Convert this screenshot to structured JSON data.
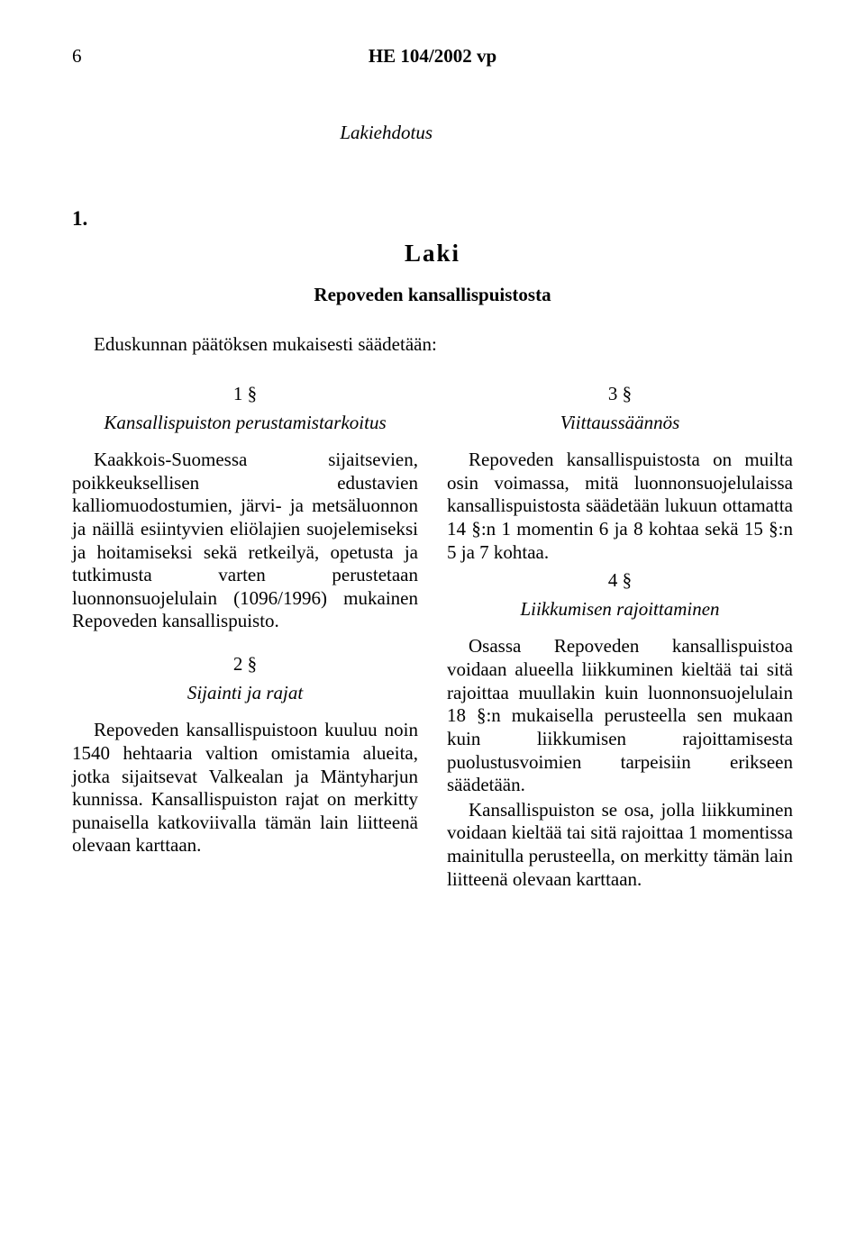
{
  "header": {
    "page_number": "6",
    "doc_id": "HE 104/2002 vp"
  },
  "lakiehdotus": "Lakiehdotus",
  "number_one": "1.",
  "laki_heading": "Laki",
  "subtitle": "Repoveden kansallispuistosta",
  "intro": "Eduskunnan päätöksen mukaisesti säädetään:",
  "left": {
    "s1_num": "1 §",
    "s1_title": "Kansallispuiston perustamistarkoitus",
    "s1_p1": "Kaakkois-Suomessa sijaitsevien, poikkeuksellisen edustavien kalliomuodostumien, järvi- ja metsäluonnon ja näillä esiintyvien eliölajien suojelemiseksi ja hoitamiseksi sekä retkeilyä, opetusta ja tutkimusta varten perustetaan luonnonsuojelulain (1096/1996) mukainen Repoveden kansallispuisto.",
    "s2_num": "2 §",
    "s2_title": "Sijainti ja rajat",
    "s2_p1": "Repoveden kansallispuistoon kuuluu noin 1540 hehtaaria valtion omistamia alueita, jotka sijaitsevat Valkealan ja Mäntyharjun kunnissa. Kansallispuiston rajat on merkitty punaisella katkoviivalla tämän lain liitteenä olevaan karttaan."
  },
  "right": {
    "s3_num": "3 §",
    "s3_title": "Viittaussäännös",
    "s3_p1": "Repoveden kansallispuistosta on muilta osin voimassa, mitä luonnonsuojelulaissa kansallispuistosta säädetään lukuun ottamatta 14 §:n 1 momentin 6 ja 8 kohtaa sekä 15 §:n 5 ja 7 kohtaa.",
    "s4_num": "4 §",
    "s4_title": "Liikkumisen rajoittaminen",
    "s4_p1": "Osassa Repoveden kansallispuistoa voidaan alueella liikkuminen kieltää tai sitä rajoittaa muullakin kuin luonnonsuojelulain 18 §:n mukaisella perusteella sen mukaan kuin liikkumisen rajoittamisesta puolustusvoimien tarpeisiin erikseen säädetään.",
    "s4_p2": "Kansallispuiston se osa, jolla liikkuminen voidaan kieltää tai sitä rajoittaa 1 momentissa mainitulla perusteella, on merkitty tämän lain liitteenä olevaan karttaan."
  },
  "style": {
    "background_color": "#ffffff",
    "text_color": "#000000",
    "font_family": "Times New Roman",
    "body_fontsize_pt": 16,
    "heading_fontsize_pt": 20
  }
}
